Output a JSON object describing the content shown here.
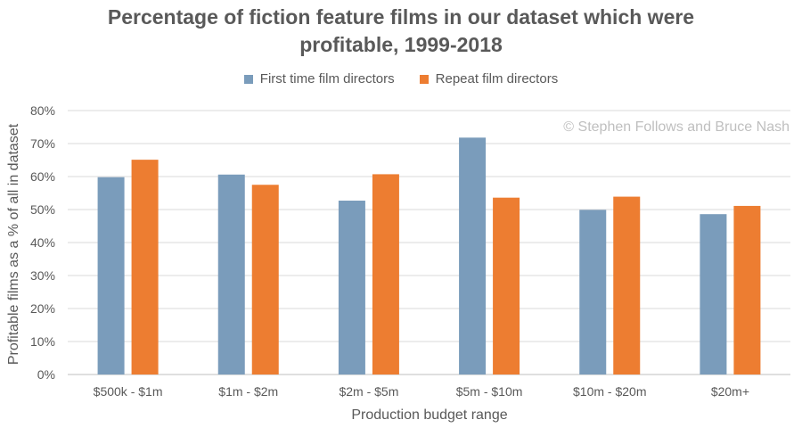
{
  "chart_data": {
    "type": "bar",
    "title_lines": [
      "Percentage of fiction feature films in our dataset which were",
      "profitable, 1999-2018"
    ],
    "xlabel": "Production budget range",
    "ylabel": "Profitable films as a % of all in dataset",
    "watermark": "© Stephen Follows and Bruce Nash",
    "categories": [
      "$500k - $1m",
      "$1m - $2m",
      "$2m - $5m",
      "$5m - $10m",
      "$10m - $20m",
      "$20m+"
    ],
    "series": [
      {
        "name": "First time film directors",
        "color": "#7a9cbb",
        "values": [
          59.8,
          60.6,
          52.7,
          71.8,
          49.9,
          48.6
        ]
      },
      {
        "name": "Repeat film directors",
        "color": "#ed7d31",
        "values": [
          65.1,
          57.5,
          60.7,
          53.6,
          53.9,
          51.1
        ]
      }
    ],
    "ylim": [
      0,
      80
    ],
    "yticks": [
      0,
      10,
      20,
      30,
      40,
      50,
      60,
      70,
      80
    ],
    "ytick_suffix": "%",
    "grid": true,
    "legend_position": "top"
  }
}
